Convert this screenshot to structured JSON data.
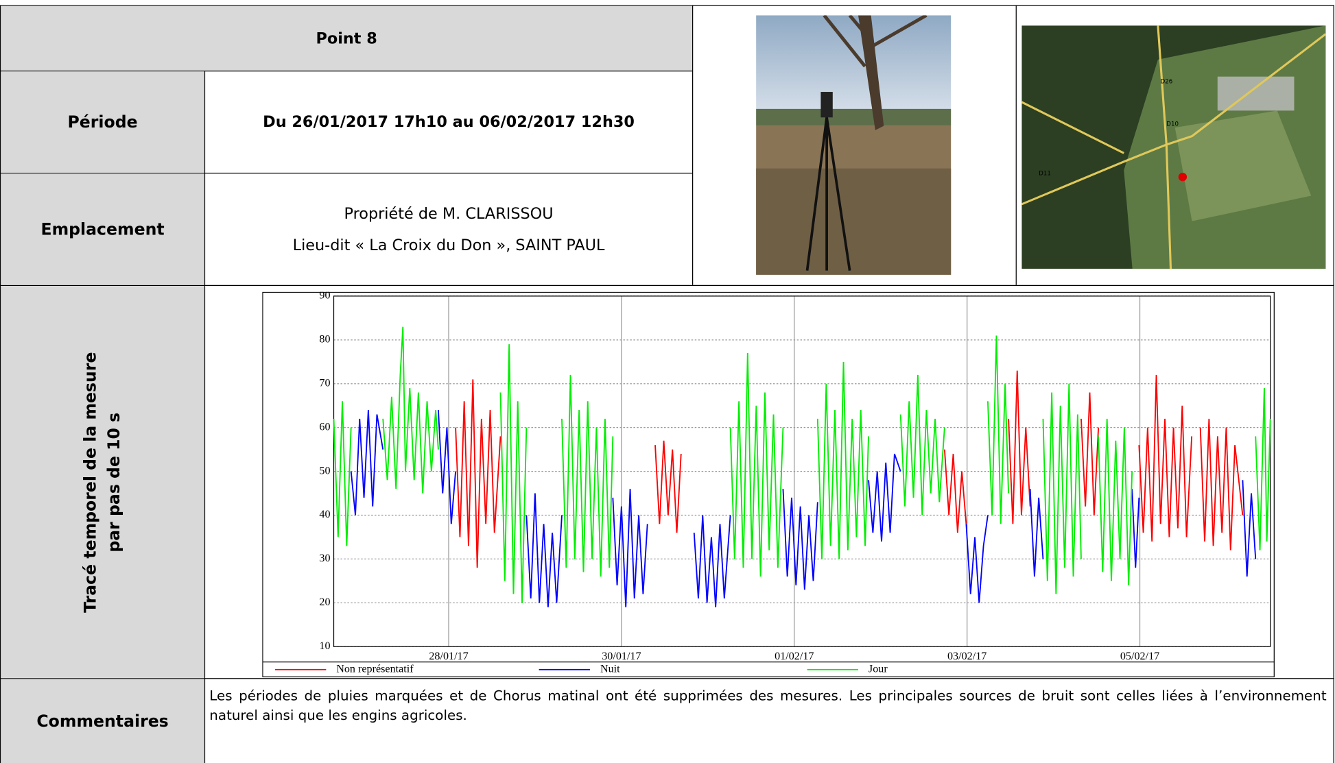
{
  "header": {
    "title": "Point 8"
  },
  "rows": [
    {
      "label": "Période",
      "value": "Du 26/01/2017 17h10 au 06/02/2017 12h30"
    },
    {
      "label": "Emplacement",
      "lines": [
        "Propriété de M. CLARISSOU",
        "Lieu-dit « La Croix du Don », SAINT PAUL"
      ]
    }
  ],
  "map": {
    "labels": [
      "D26",
      "D10",
      "D11"
    ]
  },
  "chart_section": {
    "label_lines": [
      "Tracé temporel de la mesure",
      "par pas de 10 s"
    ]
  },
  "chart_data": {
    "type": "line",
    "xlim": [
      0.67,
      11.51
    ],
    "xticks": [
      {
        "value": 2,
        "label": "28/01/17"
      },
      {
        "value": 4,
        "label": "30/01/17"
      },
      {
        "value": 6,
        "label": "01/02/17"
      },
      {
        "value": 8,
        "label": "03/02/17"
      },
      {
        "value": 10,
        "label": "05/02/17"
      }
    ],
    "ylim": [
      10,
      90
    ],
    "yticks": [
      10,
      20,
      30,
      40,
      50,
      60,
      70,
      80,
      90
    ],
    "grid": true,
    "series": [
      {
        "name": "Non représentatif",
        "color": "#ff0000",
        "x": [
          2.08,
          2.13,
          2.18,
          2.23,
          2.28,
          2.33,
          2.38,
          2.43,
          2.48,
          2.53,
          2.6,
          null,
          4.39,
          4.44,
          4.49,
          4.54,
          4.59,
          4.64,
          4.69,
          null,
          7.74,
          7.79,
          7.84,
          7.89,
          7.94,
          7.99,
          null,
          8.48,
          8.53,
          8.58,
          8.63,
          8.68,
          8.73,
          null,
          9.32,
          9.37,
          9.42,
          9.47,
          9.52,
          null,
          9.99,
          10.04,
          10.09,
          10.14,
          10.19,
          10.24,
          10.29,
          10.34,
          10.39,
          10.44,
          10.49,
          10.54,
          10.6,
          null,
          10.7,
          10.75,
          10.8,
          10.85,
          10.9,
          10.95,
          11.0,
          11.05,
          11.1,
          11.19
        ],
        "values": [
          60,
          35,
          66,
          33,
          71,
          28,
          62,
          38,
          64,
          36,
          58,
          null,
          56,
          38,
          57,
          40,
          55,
          36,
          54,
          null,
          55,
          40,
          54,
          36,
          50,
          38,
          null,
          62,
          38,
          73,
          40,
          60,
          42,
          null,
          62,
          42,
          68,
          40,
          60,
          null,
          56,
          36,
          60,
          34,
          72,
          38,
          62,
          35,
          60,
          37,
          65,
          35,
          58,
          null,
          60,
          34,
          62,
          33,
          58,
          36,
          60,
          32,
          56,
          40
        ]
      },
      {
        "name": "Nuit",
        "color": "#0000ff",
        "x": [
          0.87,
          0.92,
          0.97,
          1.02,
          1.07,
          1.12,
          1.17,
          1.24,
          null,
          1.88,
          1.93,
          1.98,
          2.03,
          2.08,
          null,
          2.9,
          2.95,
          3.0,
          3.05,
          3.1,
          3.15,
          3.2,
          3.25,
          3.31,
          null,
          3.9,
          3.95,
          4.0,
          4.05,
          4.1,
          4.15,
          4.2,
          4.25,
          4.3,
          null,
          4.84,
          4.89,
          4.94,
          4.99,
          5.04,
          5.09,
          5.14,
          5.19,
          5.26,
          null,
          5.87,
          5.92,
          5.97,
          6.02,
          6.07,
          6.12,
          6.17,
          6.22,
          6.27,
          null,
          6.86,
          6.91,
          6.96,
          7.01,
          7.06,
          7.11,
          7.16,
          7.23,
          null,
          7.99,
          8.04,
          8.09,
          8.14,
          8.19,
          8.24,
          null,
          8.73,
          8.78,
          8.83,
          8.88,
          null,
          9.91,
          9.95,
          9.99,
          null,
          11.19,
          11.24,
          11.29,
          11.34
        ],
        "values": [
          50,
          40,
          62,
          44,
          64,
          42,
          63,
          55,
          null,
          64,
          45,
          60,
          38,
          50,
          null,
          40,
          21,
          45,
          20,
          38,
          19,
          36,
          20,
          40,
          null,
          44,
          24,
          42,
          19,
          46,
          21,
          40,
          22,
          38,
          null,
          36,
          21,
          40,
          20,
          35,
          19,
          38,
          21,
          40,
          null,
          46,
          26,
          44,
          24,
          42,
          23,
          40,
          25,
          43,
          null,
          48,
          36,
          50,
          34,
          52,
          36,
          54,
          50,
          null,
          38,
          22,
          35,
          20,
          33,
          40,
          null,
          46,
          26,
          44,
          30,
          null,
          46,
          28,
          44,
          null,
          48,
          26,
          45,
          30
        ]
      },
      {
        "name": "Jour",
        "color": "#00ee00",
        "x": [
          0.67,
          0.72,
          0.77,
          0.82,
          0.87,
          null,
          1.24,
          1.29,
          1.34,
          1.39,
          1.44,
          1.47,
          1.5,
          1.55,
          1.6,
          1.65,
          1.7,
          1.75,
          1.8,
          1.85,
          1.88,
          null,
          2.6,
          2.65,
          2.7,
          2.75,
          2.8,
          2.85,
          2.9,
          null,
          3.31,
          3.36,
          3.41,
          3.46,
          3.51,
          3.56,
          3.61,
          3.66,
          3.71,
          3.76,
          3.81,
          3.86,
          3.9,
          null,
          5.26,
          5.31,
          5.36,
          5.41,
          5.46,
          5.51,
          5.56,
          5.61,
          5.66,
          5.71,
          5.76,
          5.81,
          5.87,
          null,
          6.27,
          6.32,
          6.37,
          6.42,
          6.47,
          6.52,
          6.57,
          6.62,
          6.67,
          6.72,
          6.77,
          6.82,
          6.86,
          null,
          7.23,
          7.28,
          7.33,
          7.38,
          7.43,
          7.48,
          7.53,
          7.58,
          7.63,
          7.68,
          7.74,
          null,
          8.24,
          8.29,
          8.34,
          8.39,
          8.44,
          8.48,
          null,
          8.88,
          8.93,
          8.98,
          9.03,
          9.08,
          9.13,
          9.18,
          9.23,
          9.28,
          9.32,
          null,
          9.52,
          9.57,
          9.62,
          9.67,
          9.72,
          9.77,
          9.82,
          9.87,
          9.91,
          null,
          11.34,
          11.39,
          11.44,
          11.47,
          11.51
        ],
        "values": [
          62,
          35,
          66,
          33,
          60,
          null,
          62,
          48,
          67,
          46,
          72,
          83,
          50,
          69,
          48,
          68,
          45,
          66,
          50,
          64,
          55,
          null,
          68,
          25,
          79,
          22,
          66,
          20,
          60,
          null,
          62,
          28,
          72,
          30,
          64,
          27,
          66,
          30,
          60,
          26,
          62,
          28,
          58,
          null,
          60,
          30,
          66,
          28,
          77,
          30,
          65,
          26,
          68,
          32,
          63,
          28,
          60,
          null,
          62,
          30,
          70,
          33,
          64,
          30,
          75,
          32,
          62,
          35,
          64,
          33,
          58,
          null,
          63,
          42,
          66,
          44,
          72,
          40,
          64,
          45,
          62,
          43,
          60,
          null,
          66,
          40,
          81,
          38,
          70,
          45,
          null,
          62,
          25,
          68,
          22,
          65,
          28,
          70,
          26,
          63,
          30,
          null,
          58,
          27,
          62,
          25,
          57,
          30,
          60,
          24,
          50,
          null,
          58,
          32,
          69,
          34,
          62
        ]
      }
    ]
  },
  "comments": {
    "label": "Commentaires",
    "text": "Les périodes de pluies marquées et de Chorus matinal ont été supprimées des mesures. Les principales sources de bruit sont celles liées à l’environnement naturel ainsi que les engins agricoles."
  }
}
